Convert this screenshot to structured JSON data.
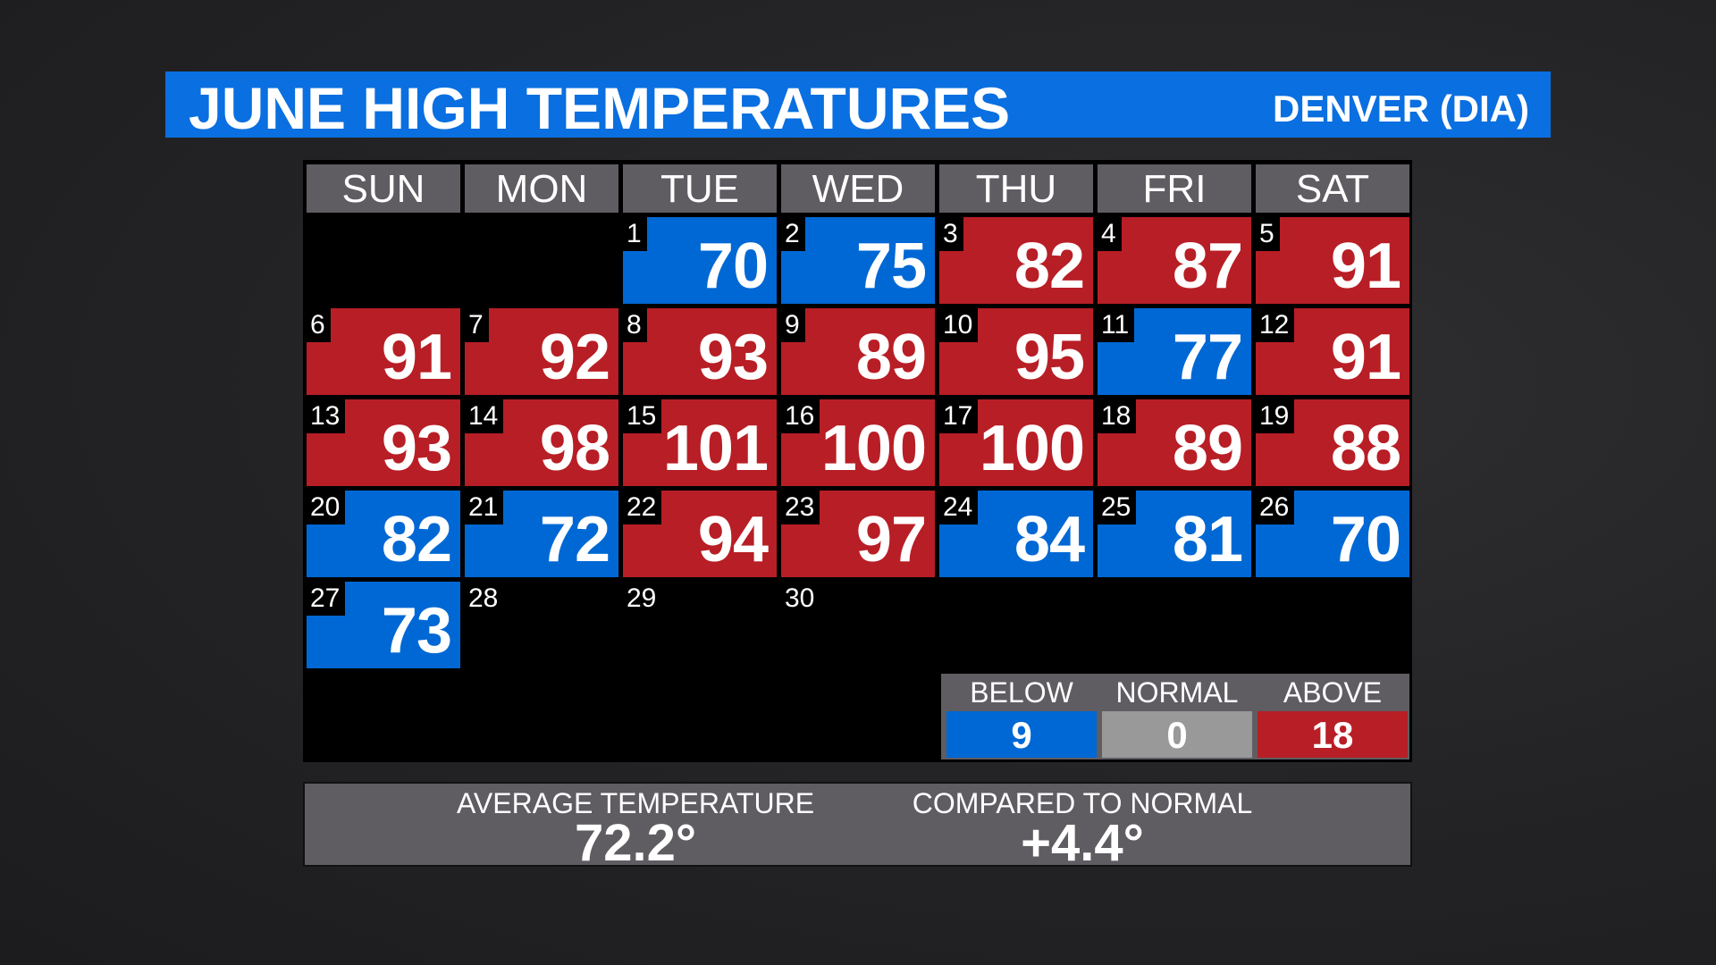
{
  "header": {
    "title": "JUNE HIGH TEMPERATURES",
    "location": "DENVER (DIA)"
  },
  "colors": {
    "title_bar": "#0a6fe0",
    "below": "#0068d4",
    "above": "#b81e25",
    "normal": "#999999",
    "header_gray": "#5f5c62"
  },
  "calendar": {
    "weekdays": [
      "SUN",
      "MON",
      "TUE",
      "WED",
      "THU",
      "FRI",
      "SAT"
    ],
    "first_weekday_index": 2,
    "days": [
      {
        "day": "1",
        "temp": "70",
        "status": "below"
      },
      {
        "day": "2",
        "temp": "75",
        "status": "below"
      },
      {
        "day": "3",
        "temp": "82",
        "status": "above"
      },
      {
        "day": "4",
        "temp": "87",
        "status": "above"
      },
      {
        "day": "5",
        "temp": "91",
        "status": "above"
      },
      {
        "day": "6",
        "temp": "91",
        "status": "above"
      },
      {
        "day": "7",
        "temp": "92",
        "status": "above"
      },
      {
        "day": "8",
        "temp": "93",
        "status": "above"
      },
      {
        "day": "9",
        "temp": "89",
        "status": "above"
      },
      {
        "day": "10",
        "temp": "95",
        "status": "above"
      },
      {
        "day": "11",
        "temp": "77",
        "status": "below"
      },
      {
        "day": "12",
        "temp": "91",
        "status": "above"
      },
      {
        "day": "13",
        "temp": "93",
        "status": "above"
      },
      {
        "day": "14",
        "temp": "98",
        "status": "above"
      },
      {
        "day": "15",
        "temp": "101",
        "status": "above"
      },
      {
        "day": "16",
        "temp": "100",
        "status": "above"
      },
      {
        "day": "17",
        "temp": "100",
        "status": "above"
      },
      {
        "day": "18",
        "temp": "89",
        "status": "above"
      },
      {
        "day": "19",
        "temp": "88",
        "status": "above"
      },
      {
        "day": "20",
        "temp": "82",
        "status": "below"
      },
      {
        "day": "21",
        "temp": "72",
        "status": "below"
      },
      {
        "day": "22",
        "temp": "94",
        "status": "above"
      },
      {
        "day": "23",
        "temp": "97",
        "status": "above"
      },
      {
        "day": "24",
        "temp": "84",
        "status": "below"
      },
      {
        "day": "25",
        "temp": "81",
        "status": "below"
      },
      {
        "day": "26",
        "temp": "70",
        "status": "below"
      },
      {
        "day": "27",
        "temp": "73",
        "status": "below"
      },
      {
        "day": "28",
        "temp": "",
        "status": "empty"
      },
      {
        "day": "29",
        "temp": "",
        "status": "empty"
      },
      {
        "day": "30",
        "temp": "",
        "status": "empty"
      }
    ]
  },
  "legend": [
    {
      "label": "BELOW",
      "value": "9",
      "status": "below"
    },
    {
      "label": "NORMAL",
      "value": "0",
      "status": "normal"
    },
    {
      "label": "ABOVE",
      "value": "18",
      "status": "above"
    }
  ],
  "summary": {
    "average_label": "AVERAGE TEMPERATURE",
    "average_value": "72.2°",
    "compared_label": "COMPARED TO NORMAL",
    "compared_value": "+4.4°"
  }
}
